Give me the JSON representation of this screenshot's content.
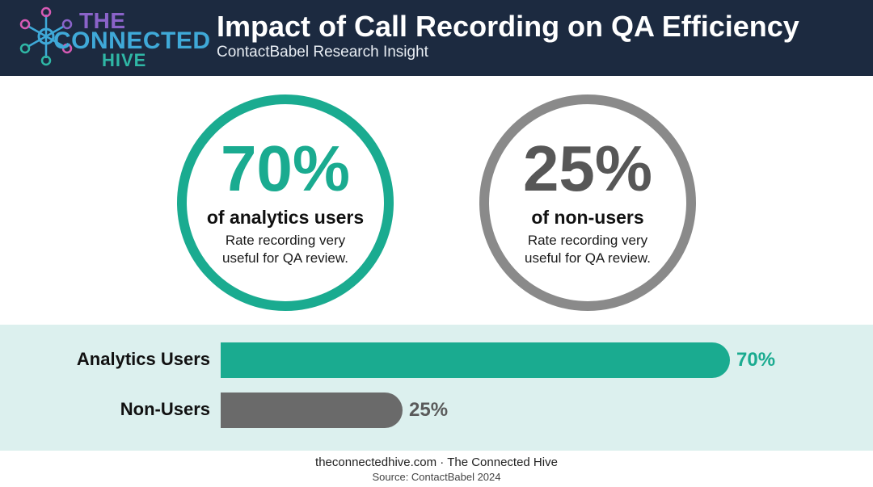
{
  "header": {
    "logo": {
      "line1": "THE",
      "line2": "CONNECTED",
      "line3": "HIVE"
    },
    "title": "Impact of Call Recording on QA Efficiency",
    "subtitle": "ContactBabel Research Insight"
  },
  "stats": [
    {
      "value": "70%",
      "label": "of analytics users",
      "description": "Rate recording very useful for QA review."
    },
    {
      "value": "25%",
      "label": "of non-users",
      "description": "Rate recording very useful for QA review."
    }
  ],
  "chart_data": {
    "type": "bar",
    "orientation": "horizontal",
    "categories": [
      "Analytics Users",
      "Non-Users"
    ],
    "values": [
      70,
      25
    ],
    "value_labels": [
      "70%",
      "25%"
    ],
    "xlim": [
      0,
      100
    ],
    "colors": [
      "#1aab90",
      "#6a6a6a"
    ],
    "grid": false
  },
  "footer": {
    "site": "theconnectedhive.com · The Connected Hive",
    "source": "Source: ContactBabel 2024"
  },
  "colors": {
    "header_bg": "#1c2a40",
    "accent_teal": "#1aab90",
    "neutral_gray": "#8a8a8a",
    "panel_bg": "#dcf0ee"
  }
}
